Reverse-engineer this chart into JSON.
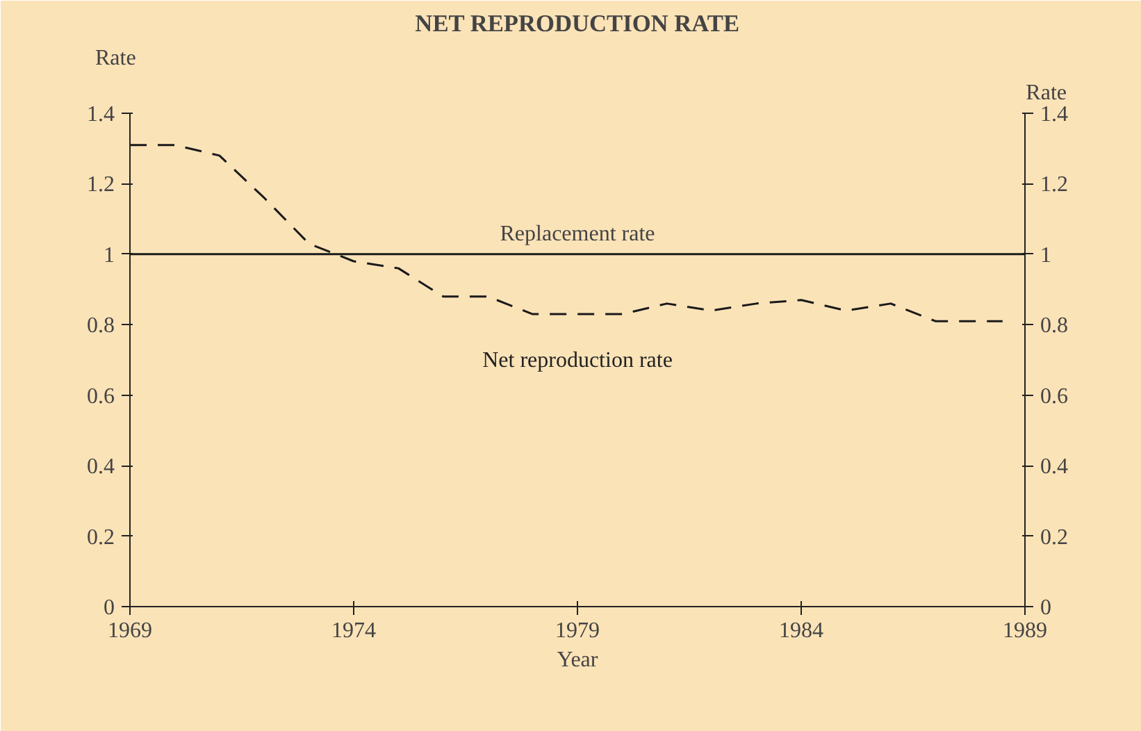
{
  "chart_data": {
    "type": "line",
    "title": "NET REPRODUCTION RATE",
    "xlabel": "Year",
    "ylabel": "Rate",
    "y2label": "Rate",
    "x": [
      1969,
      1970,
      1971,
      1972,
      1973,
      1974,
      1975,
      1976,
      1977,
      1978,
      1979,
      1980,
      1981,
      1982,
      1983,
      1984,
      1985,
      1986,
      1987,
      1988,
      1988.5
    ],
    "series": [
      {
        "name": "Net reproduction rate",
        "color": "#1a1a1a",
        "values": [
          1.31,
          1.31,
          1.28,
          1.16,
          1.03,
          0.98,
          0.96,
          0.88,
          0.88,
          0.83,
          0.83,
          0.83,
          0.86,
          0.84,
          0.86,
          0.87,
          0.84,
          0.86,
          0.81,
          0.81,
          0.81
        ]
      }
    ],
    "xlim": [
      1969,
      1989
    ],
    "xticks": [
      1969,
      1974,
      1979,
      1984,
      1989
    ],
    "ylim": [
      0,
      1.4
    ],
    "yticks": [
      0,
      0.2,
      0.4,
      0.6,
      0.8,
      1,
      1.2,
      1.4
    ],
    "y2lim": [
      0,
      1.4
    ],
    "y2ticks": [
      0,
      0.2,
      0.4,
      0.6,
      0.8,
      1,
      1.2,
      1.4
    ],
    "ref_lines": [
      {
        "axis": "y",
        "value": 1,
        "label": "Replacement rate",
        "color": "#1a1a1a",
        "line_style": "solid"
      }
    ],
    "grid": false,
    "marker": "none",
    "line_style": "dashed"
  }
}
